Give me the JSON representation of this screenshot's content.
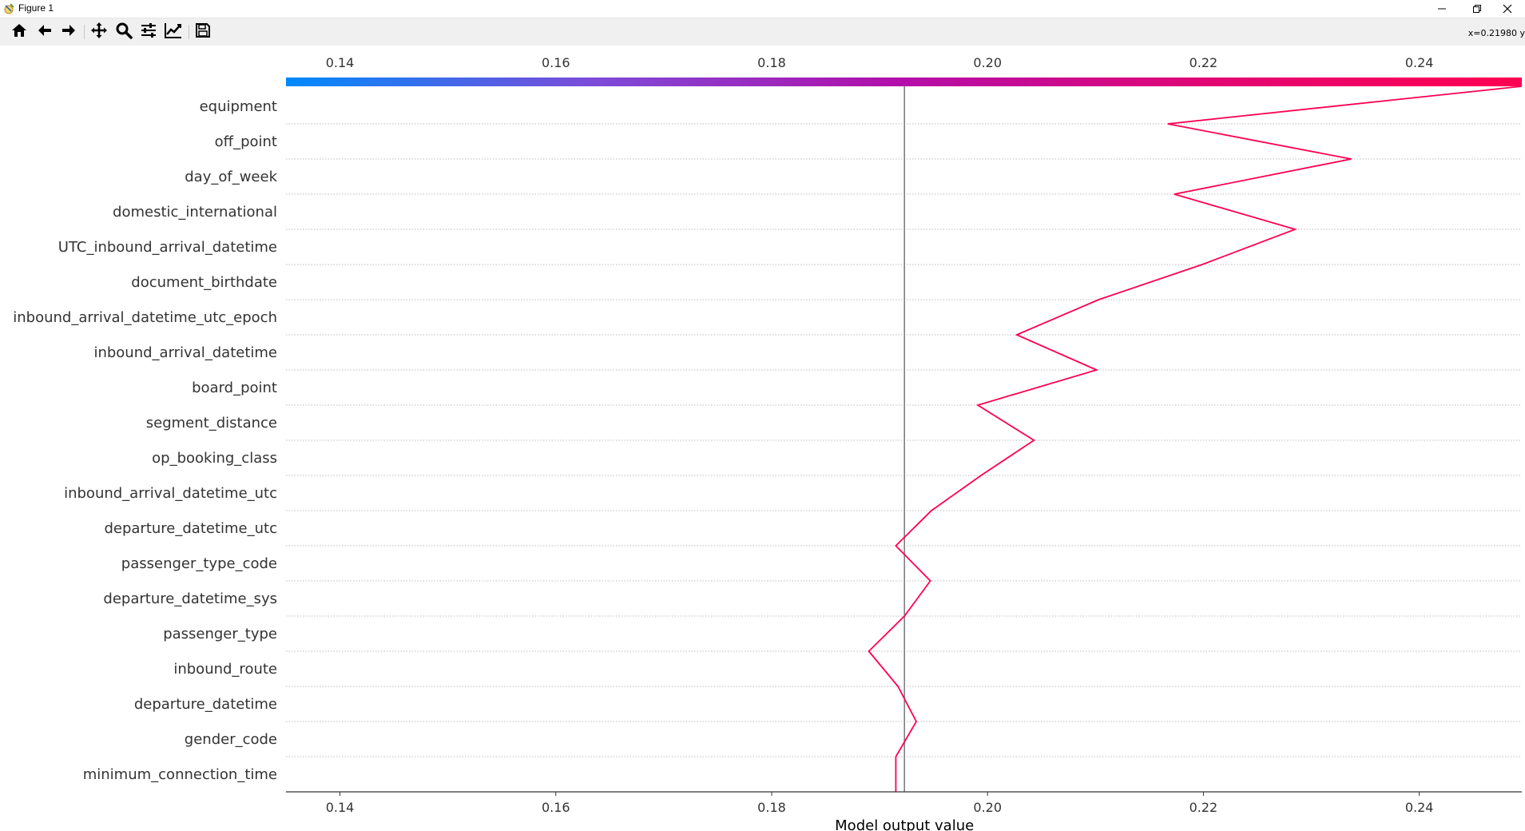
{
  "window": {
    "title": "Figure 1",
    "minimize_icon": "minimize-icon",
    "restore_icon": "restore-icon",
    "close_icon": "close-icon"
  },
  "toolbar": {
    "buttons": [
      {
        "name": "home",
        "icon": "home-icon"
      },
      {
        "name": "back",
        "icon": "arrow-left-icon"
      },
      {
        "name": "forward",
        "icon": "arrow-right-icon"
      },
      {
        "name": "pan",
        "icon": "move-icon"
      },
      {
        "name": "zoom",
        "icon": "zoom-icon"
      },
      {
        "name": "configure-subplots",
        "icon": "sliders-icon"
      },
      {
        "name": "edit-axis",
        "icon": "line-chart-icon"
      },
      {
        "name": "save",
        "icon": "save-icon"
      }
    ],
    "coords_text": "x=0.21980 y"
  },
  "chart_data": {
    "type": "line",
    "title": "",
    "xlabel": "Model output value",
    "ylabel": "",
    "xlim": [
      0.135,
      0.2495
    ],
    "x_ticks": [
      0.14,
      0.16,
      0.18,
      0.2,
      0.22,
      0.24
    ],
    "x_tick_labels": [
      "0.14",
      "0.16",
      "0.18",
      "0.20",
      "0.22",
      "0.24"
    ],
    "base_value": 0.1923,
    "features": [
      "equipment",
      "off_point",
      "day_of_week",
      "domestic_international",
      "UTC_inbound_arrival_datetime",
      "document_birthdate",
      "inbound_arrival_datetime_utc_epoch",
      "inbound_arrival_datetime",
      "board_point",
      "segment_distance",
      "op_booking_class",
      "inbound_arrival_datetime_utc",
      "departure_datetime_utc",
      "passenger_type_code",
      "departure_datetime_sys",
      "passenger_type",
      "inbound_route",
      "departure_datetime",
      "gender_code",
      "minimum_connection_time"
    ],
    "path_values": [
      0.2495,
      0.2167,
      0.2337,
      0.2173,
      0.2285,
      0.2199,
      0.2103,
      0.2027,
      0.2101,
      0.1991,
      0.2043,
      0.1994,
      0.1948,
      0.1915,
      0.1947,
      0.1923,
      0.189,
      0.1917,
      0.1934,
      0.1915
    ],
    "colorbar": {
      "colors": [
        "#008afb",
        "#7d4bd8",
        "#b40ea8",
        "#e20673",
        "#ff0052"
      ]
    },
    "line_color": "#ff0051",
    "base_line_color": "#777777",
    "grid": "dotted horizontal"
  }
}
